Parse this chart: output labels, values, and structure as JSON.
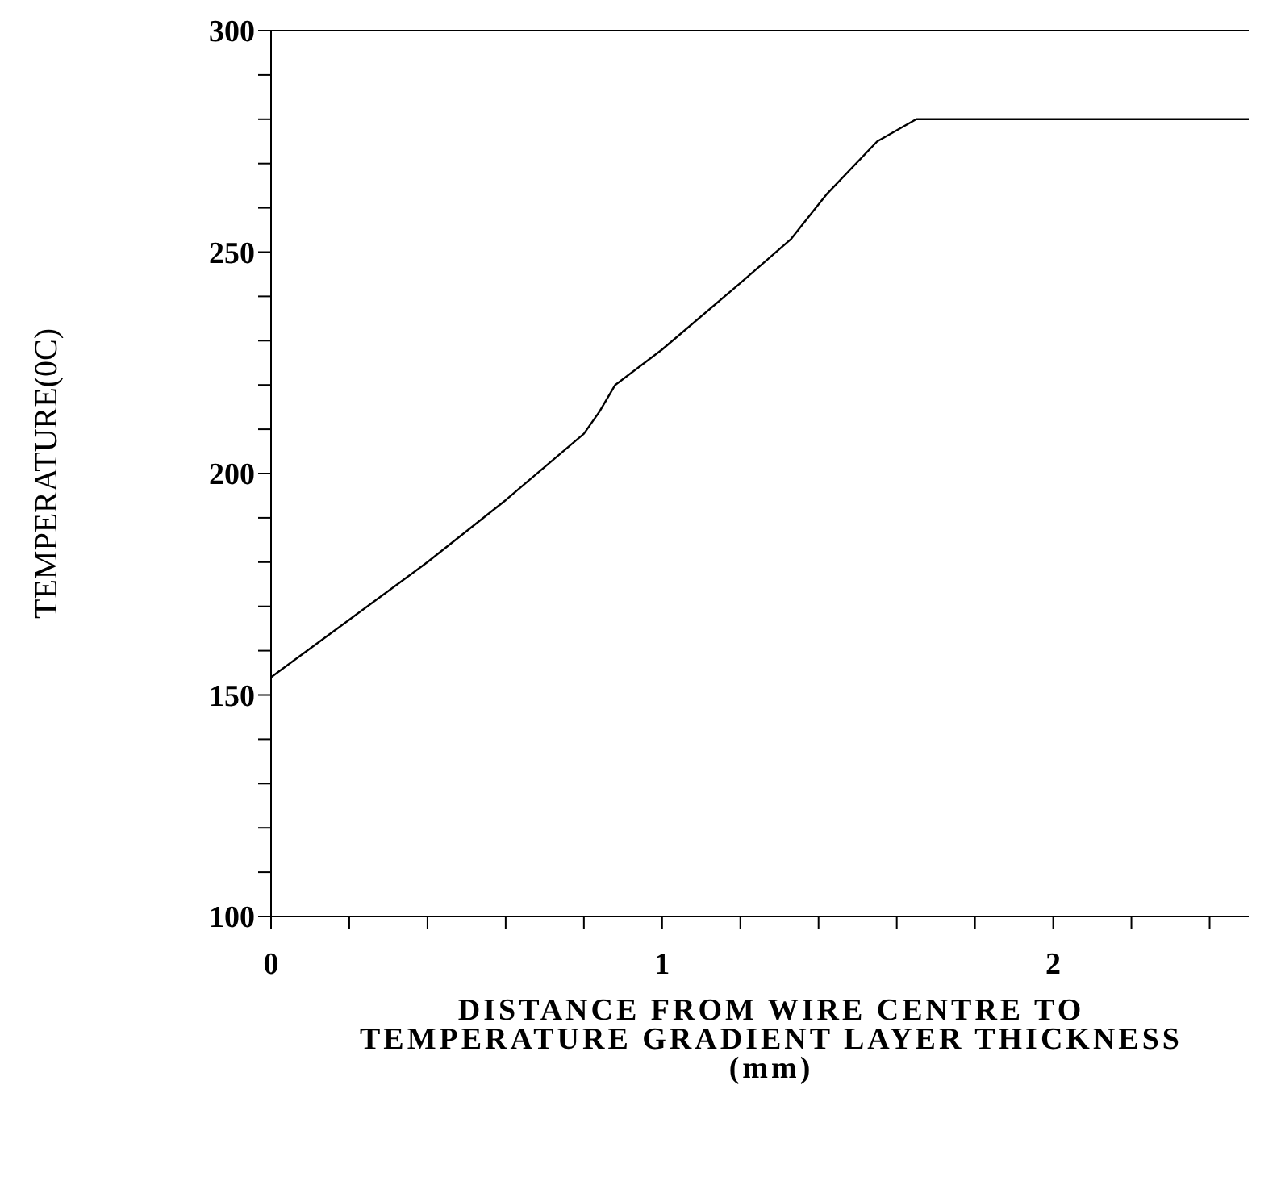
{
  "chart_data": {
    "type": "line",
    "xlabel": "DISTANCE FROM WIRE CENTRE TO\nTEMPERATURE GRADIENT LAYER THICKNESS\n(mm)",
    "ylabel": "TEMPERATURE(0C)",
    "x": [
      0,
      0.2,
      0.4,
      0.6,
      0.8,
      0.84,
      0.88,
      1.0,
      1.2,
      1.33,
      1.42,
      1.55,
      1.65,
      2.0,
      2.5
    ],
    "series": [
      {
        "color": "#000000",
        "values": [
          154,
          167,
          180,
          194,
          209,
          214,
          220,
          228,
          243,
          253,
          263,
          275,
          280,
          280,
          280
        ]
      }
    ],
    "xlim": [
      0,
      2.5
    ],
    "xticks": [
      0,
      {
        "value": 0.2,
        "label": null
      },
      {
        "value": 0.4,
        "label": null
      },
      {
        "value": 0.6,
        "label": null
      },
      {
        "value": 0.8,
        "label": null
      },
      1,
      {
        "value": 1.2,
        "label": null
      },
      {
        "value": 1.4,
        "label": null
      },
      {
        "value": 1.6,
        "label": null
      },
      {
        "value": 1.8,
        "label": null
      },
      2,
      {
        "value": 2.2,
        "label": null
      },
      {
        "value": 2.4,
        "label": null
      }
    ],
    "ylim": [
      100,
      300
    ],
    "yticks": [
      100,
      {
        "value": 110,
        "label": null
      },
      {
        "value": 120,
        "label": null
      },
      {
        "value": 130,
        "label": null
      },
      {
        "value": 140,
        "label": null
      },
      150,
      {
        "value": 160,
        "label": null
      },
      {
        "value": 170,
        "label": null
      },
      {
        "value": 180,
        "label": null
      },
      {
        "value": 190,
        "label": null
      },
      200,
      {
        "value": 210,
        "label": null
      },
      {
        "value": 220,
        "label": null
      },
      {
        "value": 230,
        "label": null
      },
      {
        "value": 240,
        "label": null
      },
      250,
      {
        "value": 260,
        "label": null
      },
      {
        "value": 270,
        "label": null
      },
      {
        "value": 280,
        "label": null
      },
      {
        "value": 290,
        "label": null
      },
      300
    ],
    "grid": false,
    "legend": false,
    "marker": "none",
    "line_style": "solid"
  }
}
